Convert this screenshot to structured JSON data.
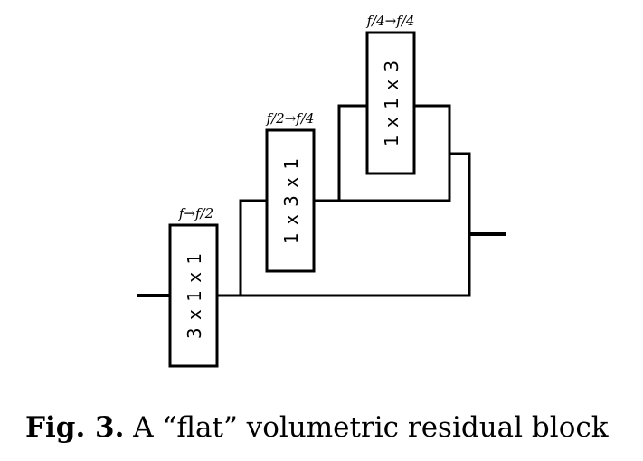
{
  "blocks": [
    {
      "conv": "3 x 1 x 1",
      "channels": "f→f/2"
    },
    {
      "conv": "1 x 3 x 1",
      "channels": "f/2→f/4"
    },
    {
      "conv": "1 x 1 x 3",
      "channels": "f/4→f/4"
    }
  ],
  "caption": {
    "label": "Fig. 3.",
    "text": " A “flat” volumetric residual block"
  }
}
